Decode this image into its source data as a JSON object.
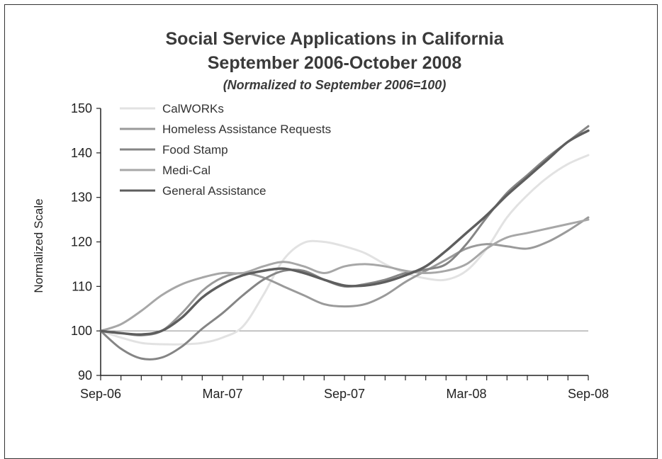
{
  "chart_data": {
    "type": "line",
    "title": "Social Service Applications in California",
    "subtitle": "September 2006-October 2008",
    "note": "(Normalized to September 2006=100)",
    "ylabel": "Normalized Scale",
    "xlabel": "",
    "ylim": [
      90,
      150
    ],
    "yticks": [
      90,
      100,
      110,
      120,
      130,
      140,
      150
    ],
    "x_tick_labels": [
      {
        "index": 0,
        "label": "Sep-06"
      },
      {
        "index": 6,
        "label": "Mar-07"
      },
      {
        "index": 12,
        "label": "Sep-07"
      },
      {
        "index": 18,
        "label": "Mar-08"
      },
      {
        "index": 24,
        "label": "Sep-08"
      }
    ],
    "x_count": 25,
    "reference_line": 100,
    "grid": false,
    "legend_position": "top-left",
    "series": [
      {
        "name": "CalWORKs",
        "color": "#e2e2e2",
        "values": [
          100,
          98.5,
          97.3,
          97,
          97,
          97.3,
          98.5,
          101,
          108,
          116,
          119.8,
          120,
          119,
          117.5,
          115,
          113,
          111.8,
          111.5,
          113.5,
          118.5,
          125.5,
          130.5,
          134.5,
          137.5,
          139.5
        ]
      },
      {
        "name": "Homeless Assistance Requests",
        "color": "#9a9a9a",
        "values": [
          100,
          99.5,
          99,
          100,
          104,
          109,
          112,
          113,
          112,
          110,
          108,
          106,
          105.5,
          106,
          108,
          111,
          113.5,
          116,
          118.5,
          119.5,
          119,
          118.5,
          120,
          122.5,
          125.5
        ]
      },
      {
        "name": "Food Stamp",
        "color": "#858585",
        "values": [
          100,
          96,
          93.8,
          94,
          96.5,
          100.5,
          104,
          108,
          111.5,
          113.5,
          113.5,
          111.5,
          110,
          110.5,
          111.5,
          113,
          113.8,
          115,
          119.5,
          125.5,
          131,
          135,
          139,
          142.5,
          146
        ]
      },
      {
        "name": "Medi-Cal",
        "color": "#a7a7a7",
        "values": [
          100,
          101.5,
          104.5,
          108,
          110.5,
          112,
          113,
          113,
          114.5,
          115.5,
          114.5,
          113,
          114.5,
          115,
          114.5,
          113.5,
          113,
          113.5,
          115,
          118.5,
          121,
          122,
          123,
          124,
          125
        ]
      },
      {
        "name": "General Assistance",
        "color": "#5e5e5e",
        "values": [
          100,
          99.5,
          99.2,
          100,
          103,
          107.5,
          110.5,
          112.5,
          113.5,
          114,
          113,
          111.5,
          110.2,
          110.2,
          111,
          112.5,
          114.5,
          118,
          122,
          126,
          130.5,
          134.5,
          138.5,
          142.5,
          145
        ]
      }
    ]
  }
}
